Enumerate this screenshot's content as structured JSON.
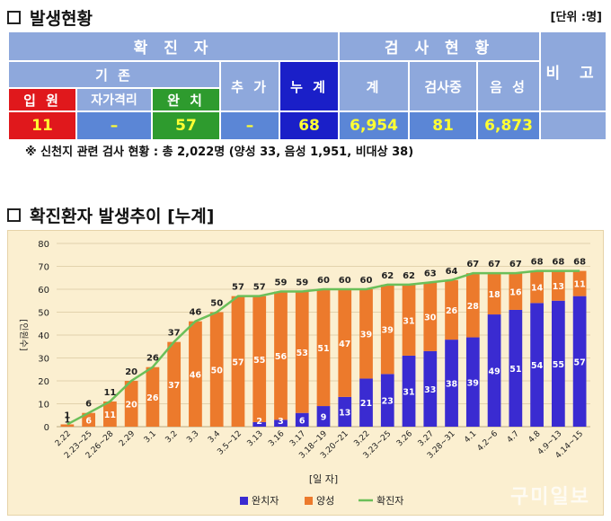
{
  "section1": {
    "title": "발생현황",
    "unit": "[단위 :명]"
  },
  "table": {
    "confirmed_header": "확 진 자",
    "test_header": "검 사 현 황",
    "remark_header": "비 고",
    "existing_header": "기 존",
    "added_header": "추 가",
    "cumulative_header": "누 계",
    "total_header": "계",
    "testing_header": "검사중",
    "negative_header": "음 성",
    "hospitalized_label": "입 원",
    "selfisolation_label": "자가격리",
    "recovered_label": "완 치",
    "hospitalized_value": "11",
    "selfisolation_value": "–",
    "recovered_value": "57",
    "added_value": "–",
    "cumulative_value": "68",
    "total_value": "6,954",
    "testing_value": "81",
    "negative_value": "6,873"
  },
  "note": "※ 신천지 관련 검사 현황 : 총 2,022명 (양성 33, 음성 1,951, 비대상 38)",
  "section2": {
    "title": "확진환자 발생추이 [누계]"
  },
  "watermark": "구미일보",
  "colors": {
    "recovered": "#3a2bd1",
    "positive": "#ec7a2c",
    "confirmed_line": "#6bbf59",
    "grid": "#e2d2ac"
  },
  "chart_data": {
    "type": "bar",
    "stacked": true,
    "categories": [
      "2.22",
      "2.23~25",
      "2.26~28",
      "2.29",
      "3.1",
      "3.2",
      "3.3",
      "3.4",
      "3.5~12",
      "3.13",
      "3.16",
      "3.17",
      "3.18~19",
      "3.20~21",
      "3.22",
      "3.23~25",
      "3.26",
      "3.27",
      "3.28~31",
      "4.1",
      "4.2~6",
      "4.7",
      "4.8",
      "4.9~13",
      "4.14~15"
    ],
    "series": [
      {
        "name": "완치자",
        "values": [
          0,
          0,
          0,
          0,
          0,
          0,
          0,
          0,
          0,
          2,
          3,
          6,
          9,
          13,
          21,
          23,
          31,
          33,
          38,
          39,
          49,
          51,
          54,
          55,
          57
        ]
      },
      {
        "name": "양성",
        "values": [
          1,
          6,
          11,
          20,
          26,
          37,
          46,
          50,
          57,
          55,
          56,
          53,
          51,
          47,
          39,
          39,
          31,
          30,
          26,
          28,
          18,
          16,
          14,
          13,
          11
        ]
      },
      {
        "name": "확진자",
        "type": "line",
        "values": [
          1,
          6,
          11,
          20,
          26,
          37,
          46,
          50,
          57,
          57,
          59,
          59,
          60,
          60,
          60,
          62,
          62,
          63,
          64,
          67,
          67,
          67,
          68,
          68,
          68
        ]
      }
    ],
    "ylim": [
      0,
      80
    ],
    "yticks": [
      0,
      10,
      20,
      30,
      40,
      50,
      60,
      70,
      80
    ],
    "ylabel": "[인원수]",
    "xlabel": "[일 자]",
    "legend_position": "bottom-center",
    "grid": true
  }
}
